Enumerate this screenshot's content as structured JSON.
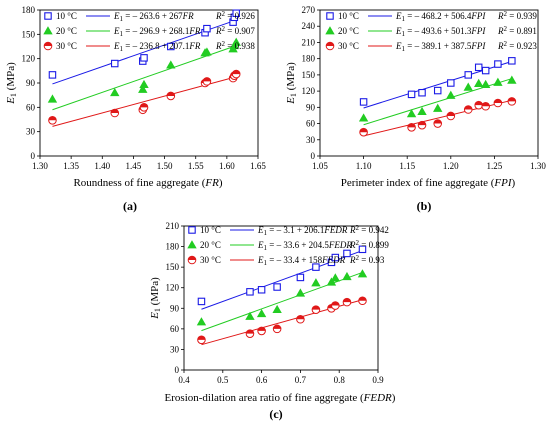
{
  "colors": {
    "c10": "#1a1ae6",
    "c20": "#22cc22",
    "c30": "#e01818",
    "axis": "#000000"
  },
  "chart_data": [
    {
      "type": "scatter",
      "panel_label": "(a)",
      "xlabel_pre": "Roundness of fine aggregate (",
      "xlabel_var": "FR",
      "xlabel_post": ")",
      "ylabel_var": "E",
      "ylabel_sub": "1",
      "ylabel_post": " (MPa)",
      "xlim": [
        1.3,
        1.65
      ],
      "ylim": [
        0,
        180
      ],
      "xticks": [
        "1.30",
        "1.35",
        "1.40",
        "1.45",
        "1.50",
        "1.55",
        "1.60",
        "1.65"
      ],
      "yticks": [
        "0",
        "30",
        "60",
        "90",
        "120",
        "150",
        "180"
      ],
      "series": [
        {
          "name": "10 °C",
          "marker": "square",
          "x": [
            1.32,
            1.42,
            1.465,
            1.467,
            1.51,
            1.565,
            1.568,
            1.61,
            1.612,
            1.615
          ],
          "y": [
            100,
            114,
            117,
            121,
            135,
            152,
            157,
            165,
            171,
            176
          ],
          "fit": {
            "intercept": -263.6,
            "slope": 267,
            "r2": "0.926",
            "eq_const": "– 263.6 + 267",
            "eq_var": "FR",
            "r2_label": "0.926"
          }
        },
        {
          "name": "20 °C",
          "marker": "triangle",
          "x": [
            1.32,
            1.42,
            1.465,
            1.467,
            1.51,
            1.565,
            1.568,
            1.61,
            1.612,
            1.615
          ],
          "y": [
            70,
            78,
            82,
            88,
            112,
            127,
            128,
            132,
            136,
            140
          ],
          "fit": {
            "intercept": -296.9,
            "slope": 268.1,
            "r2": "0.907",
            "eq_const": "– 296.9 + 268.1",
            "eq_var": "FR",
            "r2_label": "0.907"
          }
        },
        {
          "name": "30 °C",
          "marker": "circle",
          "x": [
            1.32,
            1.42,
            1.465,
            1.467,
            1.51,
            1.565,
            1.568,
            1.61,
            1.612,
            1.615
          ],
          "y": [
            44,
            53,
            57,
            60,
            74,
            90,
            92,
            96,
            99,
            101
          ],
          "fit": {
            "intercept": -236.8,
            "slope": 207.1,
            "r2": "0.938",
            "eq_const": "– 236.8 + 207.1",
            "eq_var": "FR",
            "r2_label": "0.938"
          }
        }
      ]
    },
    {
      "type": "scatter",
      "panel_label": "(b)",
      "xlabel_pre": "Perimeter index of fine aggregate (",
      "xlabel_var": "FPI",
      "xlabel_post": ")",
      "ylabel_var": "E",
      "ylabel_sub": "1",
      "ylabel_post": " (MPa)",
      "xlim": [
        1.05,
        1.3
      ],
      "ylim": [
        0,
        270
      ],
      "xticks": [
        "1.05",
        "1.10",
        "1.15",
        "1.20",
        "1.25",
        "1.30"
      ],
      "yticks": [
        "0",
        "30",
        "60",
        "90",
        "120",
        "150",
        "180",
        "210",
        "240",
        "270"
      ],
      "series": [
        {
          "name": "10 °C",
          "marker": "square",
          "x": [
            1.1,
            1.155,
            1.167,
            1.185,
            1.2,
            1.22,
            1.232,
            1.24,
            1.254,
            1.27
          ],
          "y": [
            100,
            114,
            117,
            121,
            135,
            150,
            164,
            158,
            170,
            176
          ],
          "fit": {
            "intercept": -468.2,
            "slope": 506.4,
            "r2": "0.939",
            "eq_const": "– 468.2 + 506.4",
            "eq_var": "FPI",
            "r2_label": "0.939"
          }
        },
        {
          "name": "20 °C",
          "marker": "triangle",
          "x": [
            1.1,
            1.155,
            1.167,
            1.185,
            1.2,
            1.22,
            1.232,
            1.24,
            1.254,
            1.27
          ],
          "y": [
            70,
            78,
            82,
            88,
            112,
            127,
            134,
            132,
            136,
            140
          ],
          "fit": {
            "intercept": -493.6,
            "slope": 501.3,
            "r2": "0.891",
            "eq_const": "– 493.6 + 501.3",
            "eq_var": "FPI",
            "r2_label": "0.891"
          }
        },
        {
          "name": "30 °C",
          "marker": "circle",
          "x": [
            1.1,
            1.155,
            1.167,
            1.185,
            1.2,
            1.22,
            1.232,
            1.24,
            1.254,
            1.27
          ],
          "y": [
            44,
            53,
            57,
            60,
            74,
            86,
            94,
            92,
            98,
            101
          ],
          "fit": {
            "intercept": -389.1,
            "slope": 387.5,
            "r2": "0.923",
            "eq_const": "– 389.1 + 387.5",
            "eq_var": "FPI",
            "r2_label": "0.923"
          }
        }
      ]
    },
    {
      "type": "scatter",
      "panel_label": "(c)",
      "xlabel_pre": "Erosion-dilation area ratio of fine aggregate (",
      "xlabel_var": "FEDR",
      "xlabel_post": ")",
      "ylabel_var": "E",
      "ylabel_sub": "1",
      "ylabel_post": " (MPa)",
      "xlim": [
        0.4,
        0.9
      ],
      "ylim": [
        0,
        210
      ],
      "xticks": [
        "0.4",
        "0.5",
        "0.6",
        "0.7",
        "0.8",
        "0.9"
      ],
      "yticks": [
        "0",
        "30",
        "60",
        "90",
        "120",
        "150",
        "180",
        "210"
      ],
      "series": [
        {
          "name": "10 °C",
          "marker": "square",
          "x": [
            0.445,
            0.57,
            0.6,
            0.64,
            0.7,
            0.74,
            0.78,
            0.79,
            0.82,
            0.86
          ],
          "y": [
            100,
            114,
            117,
            121,
            135,
            150,
            157,
            164,
            170,
            176
          ],
          "fit": {
            "intercept": -3.1,
            "slope": 206.1,
            "r2": "0.942",
            "eq_const": "– 3.1 + 206.1",
            "eq_var": "FEDR",
            "r2_label": "0.942"
          }
        },
        {
          "name": "20 °C",
          "marker": "triangle",
          "x": [
            0.445,
            0.57,
            0.6,
            0.64,
            0.7,
            0.74,
            0.78,
            0.79,
            0.82,
            0.86
          ],
          "y": [
            70,
            78,
            82,
            88,
            112,
            127,
            128,
            134,
            136,
            140
          ],
          "fit": {
            "intercept": -33.6,
            "slope": 204.5,
            "r2": "0.899",
            "eq_const": "– 33.6 + 204.5",
            "eq_var": "FEDR",
            "r2_label": "0.899"
          }
        },
        {
          "name": "30 °C",
          "marker": "circle",
          "x": [
            0.445,
            0.57,
            0.6,
            0.64,
            0.7,
            0.74,
            0.78,
            0.79,
            0.82,
            0.86
          ],
          "y": [
            44,
            53,
            57,
            60,
            74,
            88,
            90,
            94,
            99,
            101
          ],
          "fit": {
            "intercept": -33.4,
            "slope": 158,
            "r2": "0.93",
            "eq_const": "– 33.4 + 158",
            "eq_var": "FEDR",
            "r2_label": "0.93"
          }
        }
      ]
    }
  ]
}
